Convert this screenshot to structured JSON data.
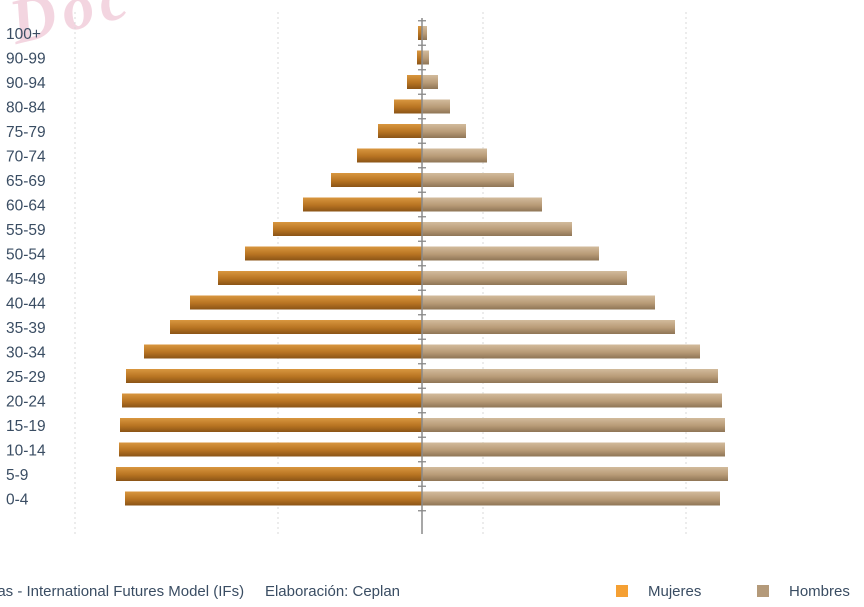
{
  "watermark": "Doc",
  "footer": {
    "source": "las - International Futures Model (IFs)",
    "credit": "Elaboración: Ceplan"
  },
  "legend": {
    "mujeres_label": "Mujeres",
    "hombres_label": "Hombres"
  },
  "colors": {
    "mujeres_bar": "#b87422",
    "hombres_bar": "#b89b77",
    "mujeres_legend": "#f5a033",
    "hombres_legend": "#b49a7a",
    "axis": "#8a8a8a",
    "label": "#3a4d63",
    "grid": "#d8d8d8"
  },
  "chart_data": {
    "type": "bar",
    "orientation": "horizontal",
    "categories": [
      "0-4",
      "5-9",
      "10-14",
      "15-19",
      "20-24",
      "25-29",
      "30-34",
      "35-39",
      "40-44",
      "45-49",
      "50-54",
      "55-59",
      "60-64",
      "65-69",
      "70-74",
      "75-79",
      "80-84",
      "90-94",
      "90-99",
      "100+"
    ],
    "series": [
      {
        "name": "Mujeres",
        "side": "left",
        "values": [
          297,
          306,
          303,
          302,
          300,
          296,
          278,
          252,
          232,
          204,
          177,
          149,
          119,
          91,
          65,
          44,
          28,
          15,
          5,
          4
        ]
      },
      {
        "name": "Hombres",
        "side": "right",
        "values": [
          298,
          306,
          303,
          303,
          300,
          296,
          278,
          253,
          233,
          205,
          177,
          150,
          120,
          92,
          65,
          44,
          28,
          16,
          7,
          5
        ]
      }
    ],
    "xlim": [
      -350,
      350
    ],
    "grid": true,
    "legend_position": "bottom-right"
  }
}
